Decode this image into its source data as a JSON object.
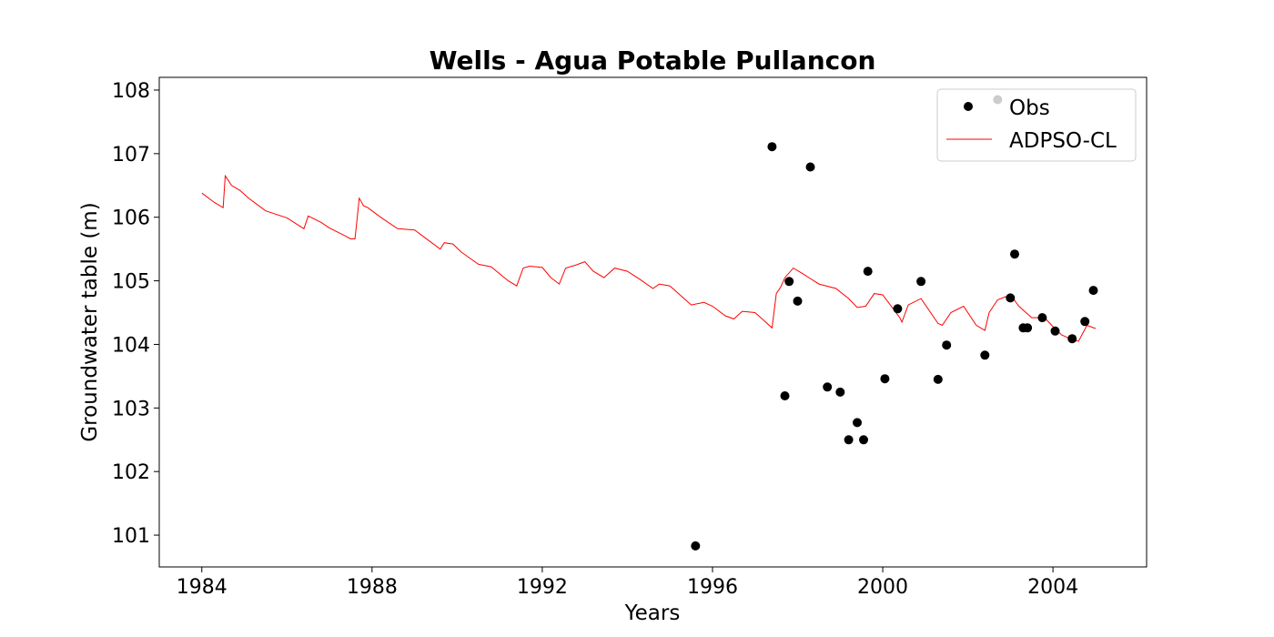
{
  "chart_data": {
    "type": "scatter",
    "title": "Wells - Agua Potable Pullancon",
    "xlabel": "Years",
    "ylabel": "Groundwater table (m)",
    "xlim": [
      1983,
      2006.2
    ],
    "ylim": [
      100.5,
      108.2
    ],
    "xticks": [
      1984,
      1988,
      1992,
      1996,
      2000,
      2004
    ],
    "yticks": [
      101,
      102,
      103,
      104,
      105,
      106,
      107,
      108
    ],
    "grid": false,
    "legend_position": "top-right",
    "series": [
      {
        "name": "Obs",
        "kind": "scatter",
        "color": "#000000",
        "x": [
          1995.6,
          1997.4,
          1997.7,
          1997.8,
          1998.0,
          1998.3,
          1998.7,
          1999.0,
          1999.2,
          1999.4,
          1999.55,
          1999.65,
          2000.05,
          2000.35,
          2000.9,
          2001.3,
          2001.5,
          2002.4,
          2002.7,
          2003.0,
          2003.1,
          2003.3,
          2003.4,
          2003.75,
          2004.05,
          2004.45,
          2004.75,
          2004.95
        ],
        "y": [
          100.83,
          107.11,
          103.19,
          104.99,
          104.68,
          106.79,
          103.33,
          103.25,
          102.5,
          102.77,
          102.5,
          105.15,
          103.46,
          104.56,
          104.99,
          103.45,
          103.99,
          103.83,
          107.85,
          104.73,
          105.42,
          104.26,
          104.26,
          104.42,
          104.21,
          104.09,
          104.36,
          104.85
        ]
      },
      {
        "name": "ADPSO-CL",
        "kind": "line",
        "color": "#ff0000",
        "x": [
          1984.0,
          1984.3,
          1984.5,
          1984.55,
          1984.7,
          1984.9,
          1985.1,
          1985.4,
          1985.5,
          1986.0,
          1986.4,
          1986.5,
          1986.8,
          1987.0,
          1987.3,
          1987.5,
          1987.6,
          1987.7,
          1987.8,
          1987.9,
          1988.2,
          1988.6,
          1989.0,
          1989.3,
          1989.6,
          1989.7,
          1989.9,
          1990.1,
          1990.5,
          1990.8,
          1991.2,
          1991.4,
          1991.55,
          1991.7,
          1992.0,
          1992.2,
          1992.4,
          1992.55,
          1992.8,
          1993.0,
          1993.2,
          1993.45,
          1993.7,
          1994.0,
          1994.3,
          1994.6,
          1994.75,
          1995.0,
          1995.3,
          1995.5,
          1995.8,
          1996.0,
          1996.3,
          1996.5,
          1996.7,
          1997.0,
          1997.2,
          1997.4,
          1997.5,
          1997.6,
          1997.7,
          1997.9,
          1998.1,
          1998.5,
          1998.9,
          1999.2,
          1999.4,
          1999.6,
          1999.8,
          2000.0,
          2000.4,
          2000.45,
          2000.6,
          2000.9,
          2001.3,
          2001.4,
          2001.6,
          2001.9,
          2002.2,
          2002.4,
          2002.5,
          2002.7,
          2003.0,
          2003.2,
          2003.5,
          2003.8,
          2004.0,
          2004.2,
          2004.5,
          2004.6,
          2004.8,
          2005.0
        ],
        "y": [
          106.38,
          106.23,
          106.15,
          106.65,
          106.5,
          106.42,
          106.3,
          106.15,
          106.1,
          105.99,
          105.82,
          106.02,
          105.92,
          105.83,
          105.73,
          105.66,
          105.66,
          106.3,
          106.18,
          106.15,
          106.0,
          105.82,
          105.8,
          105.65,
          105.5,
          105.6,
          105.58,
          105.45,
          105.26,
          105.22,
          105.0,
          104.92,
          105.2,
          105.23,
          105.21,
          105.05,
          104.95,
          105.2,
          105.25,
          105.3,
          105.15,
          105.05,
          105.2,
          105.15,
          105.02,
          104.88,
          104.95,
          104.92,
          104.74,
          104.62,
          104.66,
          104.6,
          104.45,
          104.4,
          104.52,
          104.5,
          104.38,
          104.26,
          104.8,
          104.9,
          105.05,
          105.2,
          105.12,
          104.95,
          104.88,
          104.72,
          104.58,
          104.6,
          104.8,
          104.78,
          104.42,
          104.35,
          104.62,
          104.72,
          104.33,
          104.3,
          104.5,
          104.6,
          104.3,
          104.22,
          104.5,
          104.7,
          104.78,
          104.6,
          104.42,
          104.42,
          104.28,
          104.15,
          104.06,
          104.05,
          104.3,
          104.25
        ]
      }
    ]
  }
}
